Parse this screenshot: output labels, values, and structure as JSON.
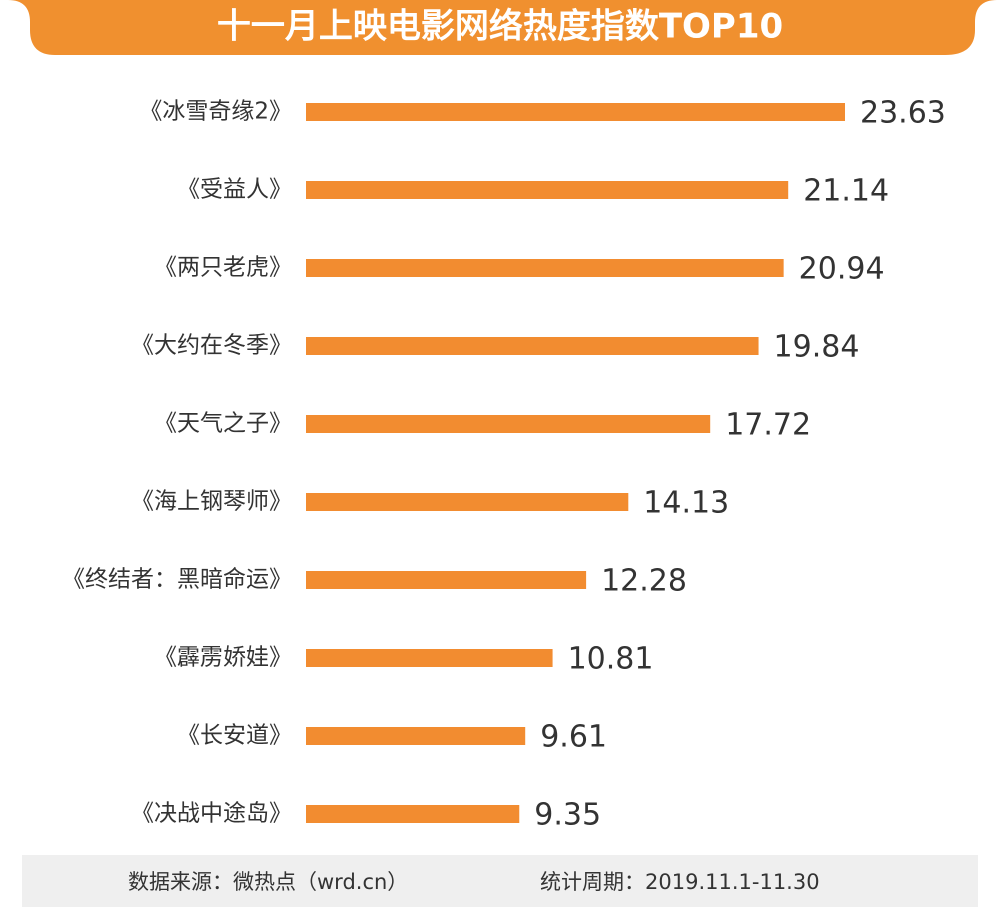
{
  "chart_data": {
    "type": "bar",
    "orientation": "horizontal",
    "title": "十一月上映电影网络热度指数TOP10",
    "categories": [
      "《冰雪奇缘2》",
      "《受益人》",
      "《两只老虎》",
      "《大约在冬季》",
      "《天气之子》",
      "《海上钢琴师》",
      "《终结者：黑暗命运》",
      "《霹雳娇娃》",
      "《长安道》",
      "《决战中途岛》"
    ],
    "values": [
      23.63,
      21.14,
      20.94,
      19.84,
      17.72,
      14.13,
      12.28,
      10.81,
      9.61,
      9.35
    ],
    "color": "#f28c30",
    "source": "数据来源：微热点（wrd.cn）",
    "period": "统计周期：2019.11.1-11.30"
  }
}
